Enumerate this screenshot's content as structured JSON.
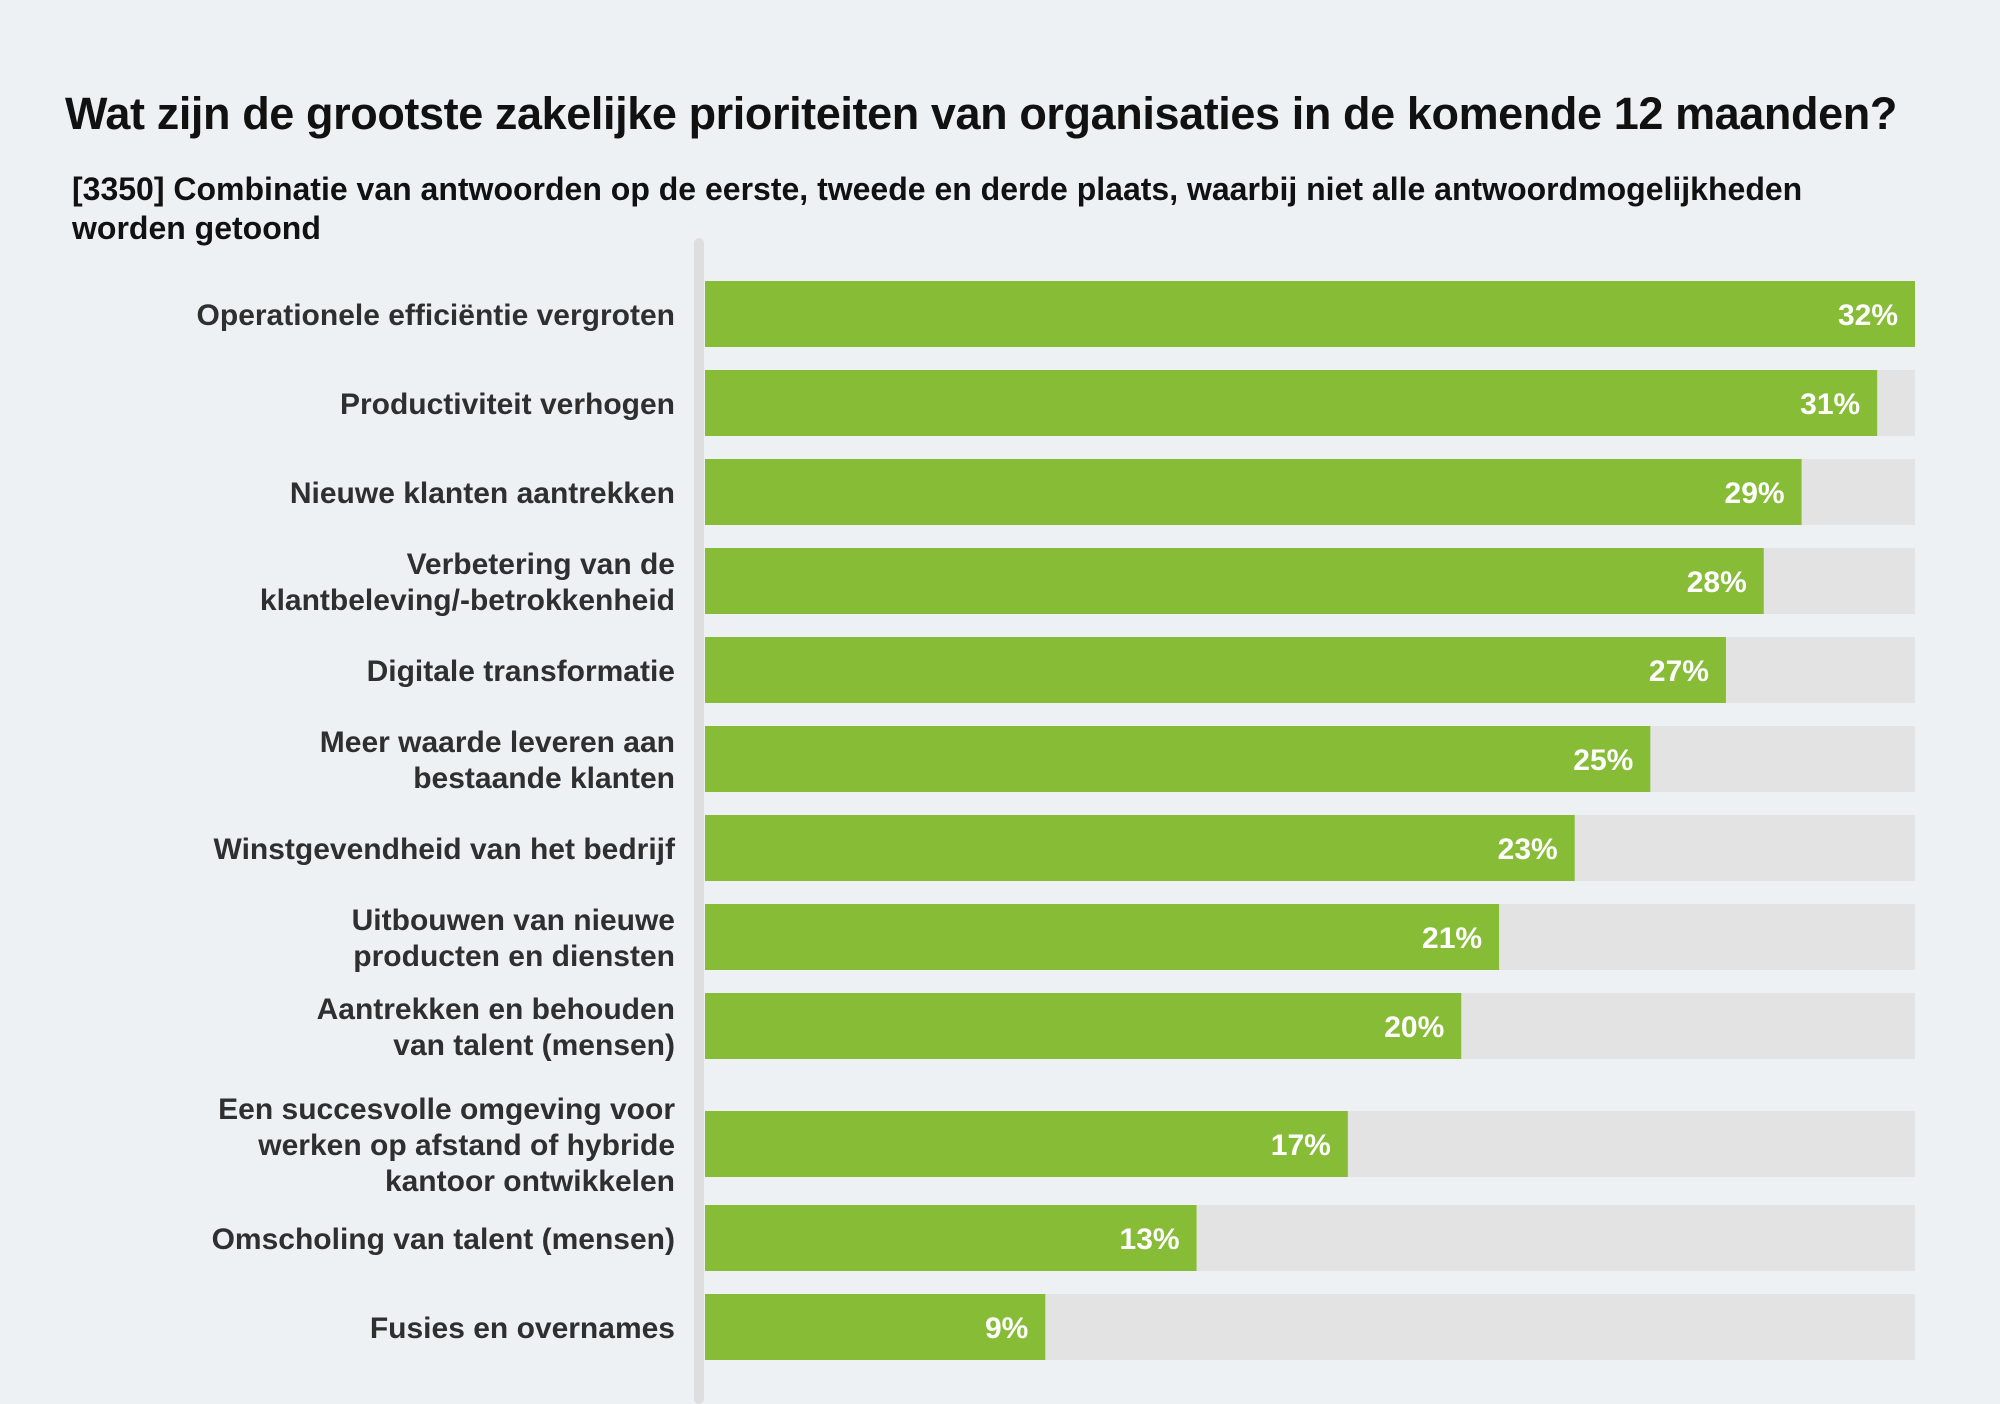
{
  "chart_data": {
    "type": "bar",
    "orientation": "horizontal",
    "title": "Wat zijn de grootste zakelijke prioriteiten van organisaties in de komende 12 maanden?",
    "subtitle": "[3350] Combinatie van antwoorden op de eerste, tweede en derde plaats, waarbij niet alle antwoordmogelijkheden worden getoond",
    "categories": [
      [
        "Operationele efficiëntie vergroten"
      ],
      [
        "Productiviteit verhogen"
      ],
      [
        "Nieuwe klanten aantrekken"
      ],
      [
        "Verbetering van de",
        "klantbeleving/-betrokkenheid"
      ],
      [
        "Digitale transformatie"
      ],
      [
        "Meer waarde leveren aan",
        "bestaande klanten"
      ],
      [
        "Winstgevendheid van het bedrijf"
      ],
      [
        "Uitbouwen van nieuwe",
        "producten en diensten"
      ],
      [
        "Aantrekken en behouden",
        "van talent (mensen)"
      ],
      [
        "Een succesvolle omgeving voor",
        "werken op afstand of hybride",
        "kantoor ontwikkelen"
      ],
      [
        "Omscholing van talent (mensen)"
      ],
      [
        "Fusies en overnames"
      ]
    ],
    "values": [
      32,
      31,
      29,
      28,
      27,
      25,
      23,
      21,
      20,
      17,
      13,
      9
    ],
    "value_labels": [
      "32%",
      "31%",
      "29%",
      "28%",
      "27%",
      "25%",
      "23%",
      "21%",
      "20%",
      "17%",
      "13%",
      "9%"
    ],
    "xlim": [
      0,
      32
    ],
    "grid": false,
    "legend": "none",
    "colors": {
      "bar": "#86bc36",
      "track": "#e3e3e3",
      "axis": "#dedede",
      "label": "#2f2f2f",
      "value_label": "#ffffff",
      "background": "#eef1f3"
    }
  }
}
